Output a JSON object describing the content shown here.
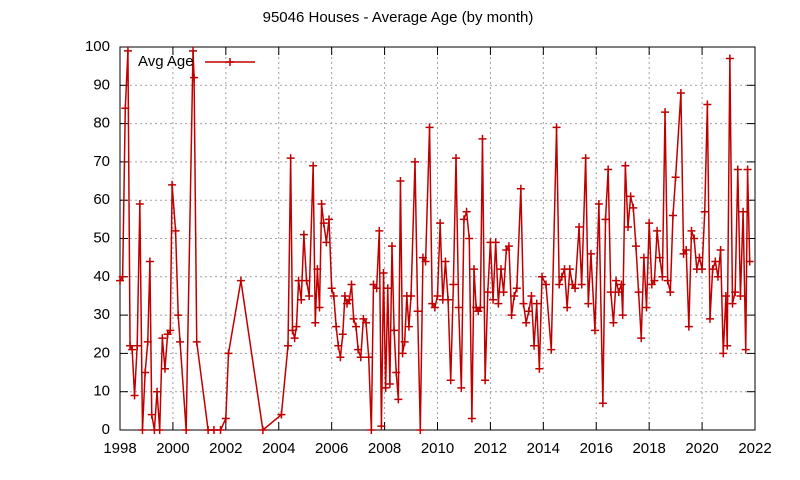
{
  "chart_data": {
    "type": "line",
    "title": "95046 Houses - Average Age (by month)",
    "x": [
      1998.0,
      1998.1,
      1998.2,
      1998.3,
      1998.38,
      1998.46,
      1998.55,
      1998.65,
      1998.75,
      1998.85,
      1998.95,
      1999.05,
      1999.13,
      1999.2,
      1999.3,
      1999.4,
      1999.5,
      1999.6,
      1999.7,
      1999.8,
      1999.9,
      1999.97,
      2000.1,
      2000.2,
      2000.27,
      2000.5,
      2000.76,
      2000.8,
      2000.9,
      2001.33,
      2001.55,
      2001.8,
      2002.0,
      2002.1,
      2002.57,
      2003.4,
      2004.1,
      2004.35,
      2004.45,
      2004.52,
      2004.6,
      2004.67,
      2004.75,
      2004.85,
      2004.95,
      2005.05,
      2005.15,
      2005.3,
      2005.38,
      2005.46,
      2005.54,
      2005.62,
      2005.7,
      2005.8,
      2005.9,
      2006.0,
      2006.08,
      2006.17,
      2006.25,
      2006.33,
      2006.42,
      2006.5,
      2006.58,
      2006.67,
      2006.75,
      2006.83,
      2006.92,
      2007.0,
      2007.1,
      2007.2,
      2007.3,
      2007.4,
      2007.5,
      2007.58,
      2007.7,
      2007.8,
      2007.88,
      2007.96,
      2008.04,
      2008.12,
      2008.2,
      2008.28,
      2008.36,
      2008.44,
      2008.52,
      2008.6,
      2008.68,
      2008.76,
      2008.84,
      2008.92,
      2009.0,
      2009.15,
      2009.25,
      2009.35,
      2009.45,
      2009.55,
      2009.7,
      2009.8,
      2009.9,
      2010.0,
      2010.1,
      2010.2,
      2010.3,
      2010.4,
      2010.5,
      2010.6,
      2010.7,
      2010.8,
      2010.9,
      2011.0,
      2011.1,
      2011.2,
      2011.3,
      2011.38,
      2011.46,
      2011.54,
      2011.62,
      2011.7,
      2011.8,
      2011.9,
      2012.0,
      2012.1,
      2012.2,
      2012.3,
      2012.4,
      2012.5,
      2012.6,
      2012.7,
      2012.8,
      2012.9,
      2013.0,
      2013.15,
      2013.25,
      2013.35,
      2013.45,
      2013.55,
      2013.65,
      2013.75,
      2013.85,
      2013.95,
      2014.1,
      2014.3,
      2014.5,
      2014.6,
      2014.7,
      2014.8,
      2014.9,
      2015.0,
      2015.1,
      2015.2,
      2015.35,
      2015.45,
      2015.6,
      2015.7,
      2015.8,
      2015.95,
      2016.1,
      2016.25,
      2016.35,
      2016.45,
      2016.55,
      2016.65,
      2016.75,
      2016.85,
      2016.95,
      2017.0,
      2017.1,
      2017.2,
      2017.3,
      2017.4,
      2017.5,
      2017.6,
      2017.7,
      2017.8,
      2017.9,
      2018.0,
      2018.1,
      2018.2,
      2018.3,
      2018.4,
      2018.5,
      2018.6,
      2018.7,
      2018.8,
      2018.9,
      2019.0,
      2019.2,
      2019.3,
      2019.4,
      2019.5,
      2019.6,
      2019.7,
      2019.8,
      2019.9,
      2020.0,
      2020.1,
      2020.2,
      2020.3,
      2020.4,
      2020.5,
      2020.6,
      2020.7,
      2020.8,
      2020.9,
      2020.95,
      2021.05,
      2021.15,
      2021.25,
      2021.35,
      2021.45,
      2021.55,
      2021.65,
      2021.72,
      2021.8
    ],
    "series": [
      {
        "name": "Avg Age",
        "color": "#c00000",
        "values": [
          39,
          40,
          84,
          99,
          22,
          21,
          9,
          22,
          59,
          0,
          15,
          23,
          44,
          4,
          0,
          10,
          0,
          24,
          16,
          25,
          26,
          64,
          52,
          30,
          23,
          0,
          99,
          92,
          23,
          0,
          0,
          0,
          3,
          20,
          39,
          0,
          4,
          22,
          71,
          26,
          24,
          27,
          39,
          34,
          51,
          39,
          35,
          69,
          28,
          42,
          32,
          59,
          54,
          49,
          55,
          37,
          35,
          27,
          22,
          19,
          25,
          35,
          33,
          34,
          38,
          29,
          27,
          21,
          19,
          29,
          28,
          19,
          0,
          38,
          37,
          52,
          1,
          41,
          11,
          37,
          12,
          48,
          26,
          15,
          8,
          65,
          20,
          23,
          35,
          27,
          35,
          70,
          31,
          0,
          45,
          44,
          79,
          33,
          32,
          35,
          54,
          34,
          44,
          34,
          13,
          38,
          71,
          32,
          11,
          55,
          57,
          50,
          3,
          42,
          32,
          31,
          32,
          76,
          13,
          36,
          49,
          34,
          49,
          33,
          42,
          36,
          47,
          48,
          30,
          35,
          37,
          63,
          33,
          28,
          31,
          35,
          22,
          33,
          16,
          40,
          38,
          21,
          79,
          38,
          40,
          42,
          32,
          42,
          38,
          37,
          53,
          38,
          71,
          33,
          46,
          26,
          59,
          7,
          55,
          68,
          36,
          28,
          39,
          36,
          38,
          30,
          69,
          53,
          61,
          58,
          48,
          36,
          24,
          45,
          32,
          54,
          38,
          39,
          52,
          45,
          40,
          83,
          39,
          36,
          56,
          66,
          88,
          46,
          47,
          27,
          52,
          50,
          42,
          45,
          42,
          57,
          85,
          29,
          42,
          44,
          40,
          47,
          20,
          35,
          22,
          97,
          33,
          36,
          68,
          35,
          57,
          21,
          68,
          44
        ]
      }
    ],
    "xlim": [
      1998,
      2022
    ],
    "xticks": [
      1998,
      2000,
      2002,
      2004,
      2006,
      2008,
      2010,
      2012,
      2014,
      2016,
      2018,
      2020,
      2022
    ],
    "ylim": [
      0,
      100
    ],
    "yticks": [
      0,
      10,
      20,
      30,
      40,
      50,
      60,
      70,
      80,
      90,
      100
    ],
    "grid": true,
    "legend": "top-left"
  }
}
